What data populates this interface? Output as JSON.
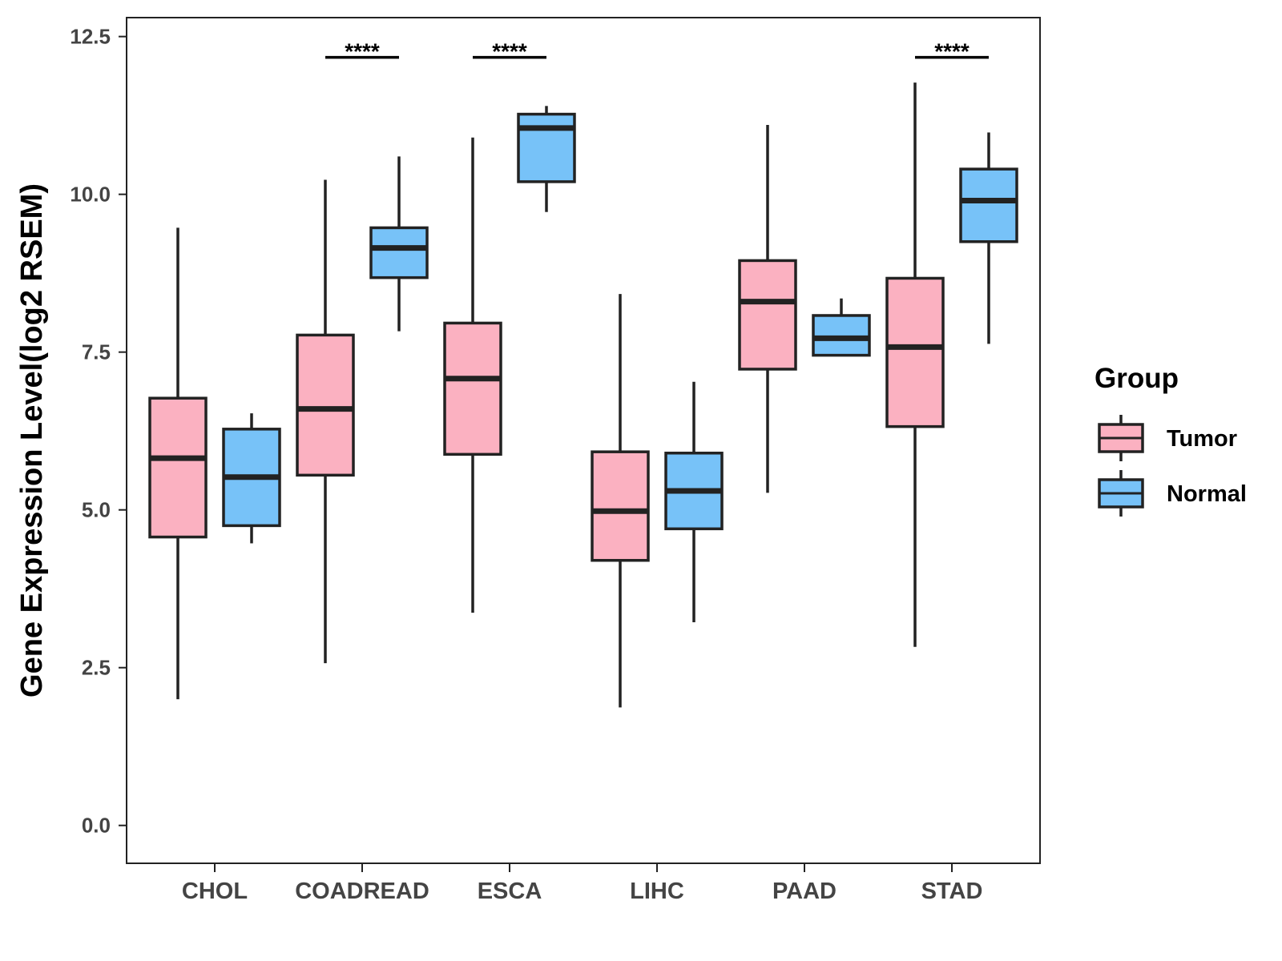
{
  "chart_data": {
    "type": "boxplot",
    "title": "",
    "xlabel": "",
    "ylabel": "Gene Expression Level(log2 RSEM)",
    "ylim": [
      -0.6,
      12.8
    ],
    "yticks": [
      "0.0",
      "2.5",
      "5.0",
      "7.5",
      "10.0",
      "12.5"
    ],
    "ytick_values": [
      0,
      2.5,
      5.0,
      7.5,
      10.0,
      12.5
    ],
    "categories": [
      "CHOL",
      "COADREAD",
      "ESCA",
      "LIHC",
      "PAAD",
      "STAD"
    ],
    "legend": {
      "title": "Group",
      "position": "right",
      "entries": [
        "Tumor",
        "Normal"
      ]
    },
    "colors": {
      "Tumor": "#FBB1C1",
      "Normal": "#77C2F8",
      "outline": "#222222"
    },
    "series": [
      {
        "name": "Tumor",
        "boxes": [
          {
            "min": 2.0,
            "q1": 4.57,
            "median": 5.82,
            "q3": 6.77,
            "max": 9.47
          },
          {
            "min": 2.57,
            "q1": 5.55,
            "median": 6.6,
            "q3": 7.77,
            "max": 10.23
          },
          {
            "min": 3.37,
            "q1": 5.88,
            "median": 7.08,
            "q3": 7.96,
            "max": 10.9
          },
          {
            "min": 1.87,
            "q1": 4.2,
            "median": 4.98,
            "q3": 5.92,
            "max": 8.42
          },
          {
            "min": 5.27,
            "q1": 7.23,
            "median": 8.3,
            "q3": 8.95,
            "max": 11.1
          },
          {
            "min": 2.83,
            "q1": 6.32,
            "median": 7.58,
            "q3": 8.67,
            "max": 11.77
          }
        ]
      },
      {
        "name": "Normal",
        "boxes": [
          {
            "min": 4.47,
            "q1": 4.75,
            "median": 5.52,
            "q3": 6.28,
            "max": 6.53
          },
          {
            "min": 7.83,
            "q1": 8.68,
            "median": 9.15,
            "q3": 9.47,
            "max": 10.6
          },
          {
            "min": 9.72,
            "q1": 10.2,
            "median": 11.05,
            "q3": 11.27,
            "max": 11.4
          },
          {
            "min": 3.22,
            "q1": 4.7,
            "median": 5.3,
            "q3": 5.9,
            "max": 7.03
          },
          {
            "min": 7.45,
            "q1": 7.45,
            "median": 7.72,
            "q3": 8.08,
            "max": 8.35
          },
          {
            "min": 7.63,
            "q1": 9.25,
            "median": 9.9,
            "q3": 10.4,
            "max": 10.98
          }
        ]
      }
    ],
    "significance": [
      {
        "category": "COADREAD",
        "label": "****",
        "y": 12.17
      },
      {
        "category": "ESCA",
        "label": "****",
        "y": 12.17
      },
      {
        "category": "STAD",
        "label": "****",
        "y": 12.17
      }
    ]
  }
}
